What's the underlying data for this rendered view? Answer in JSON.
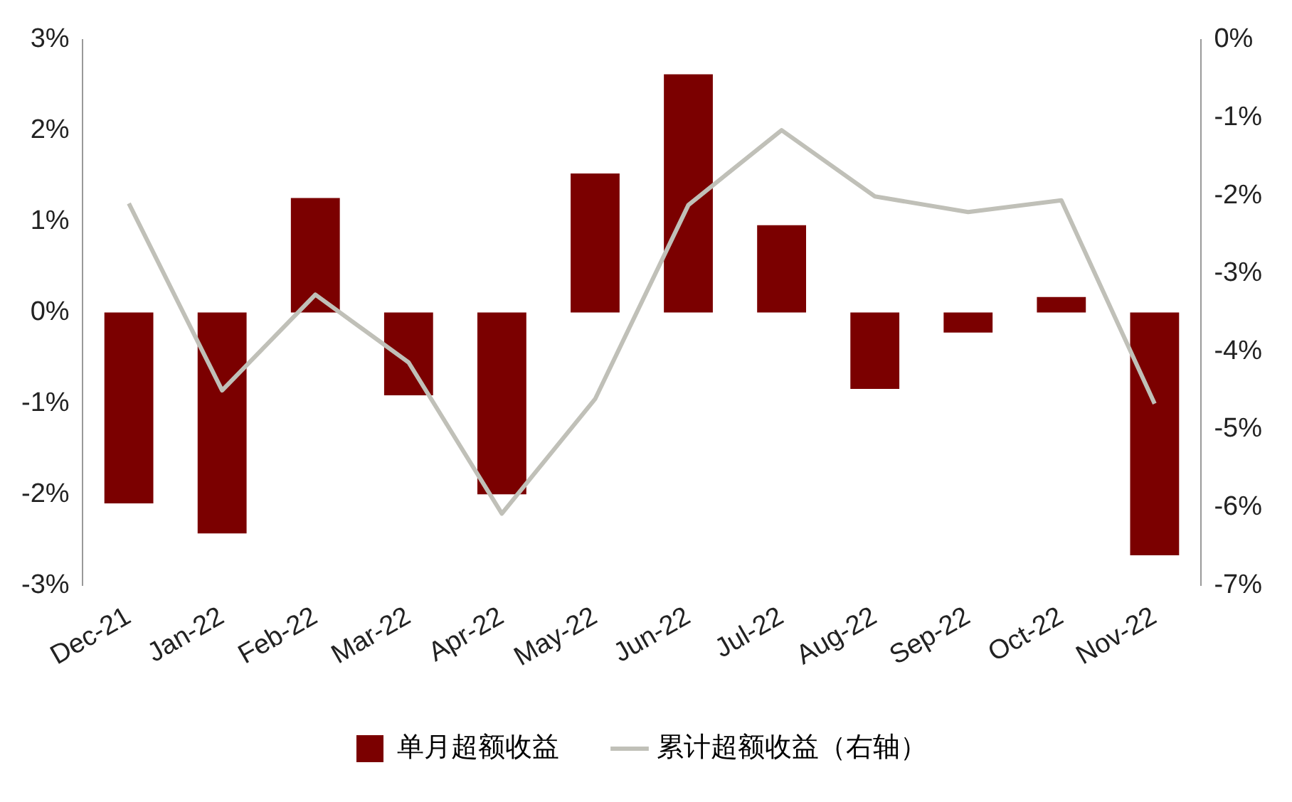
{
  "chart_data": {
    "type": "bar",
    "categories": [
      "Dec-21",
      "Jan-22",
      "Feb-22",
      "Mar-22",
      "Apr-22",
      "May-22",
      "Jun-22",
      "Jul-22",
      "Aug-22",
      "Sep-22",
      "Oct-22",
      "Nov-22"
    ],
    "series": [
      {
        "name": "单月超额收益",
        "color": "#7b0000",
        "values": [
          -2.1,
          -2.43,
          1.26,
          -0.91,
          -2.0,
          1.53,
          2.62,
          0.96,
          -0.84,
          -0.22,
          0.17,
          -2.67
        ]
      },
      {
        "name": "累计超额收益（右轴）",
        "type": "line",
        "axis": "y2",
        "color": "#c0c0b8",
        "values": [
          -2.1,
          -4.5,
          -3.27,
          -4.14,
          -6.08,
          -4.61,
          -2.12,
          -1.16,
          -2.01,
          -2.21,
          -2.06,
          -4.67
        ]
      }
    ],
    "ylim": [
      -3,
      3
    ],
    "yticks": [
      {
        "value": -3,
        "label": "-3%"
      },
      {
        "value": -2,
        "label": "-2%"
      },
      {
        "value": -1,
        "label": "-1%"
      },
      {
        "value": 0,
        "label": "0%"
      },
      {
        "value": 1,
        "label": "1%"
      },
      {
        "value": 2,
        "label": "2%"
      },
      {
        "value": 3,
        "label": "3%"
      }
    ],
    "y2lim": [
      -7,
      0
    ],
    "y2ticks": [
      {
        "value": -7,
        "label": "-7%"
      },
      {
        "value": -6,
        "label": "-6%"
      },
      {
        "value": -5,
        "label": "-5%"
      },
      {
        "value": -4,
        "label": "-4%"
      },
      {
        "value": -3,
        "label": "-3%"
      },
      {
        "value": -2,
        "label": "-2%"
      },
      {
        "value": -1,
        "label": "-1%"
      },
      {
        "value": 0,
        "label": "0%"
      }
    ],
    "grid": false,
    "legend": "bottom",
    "marker": "none"
  }
}
